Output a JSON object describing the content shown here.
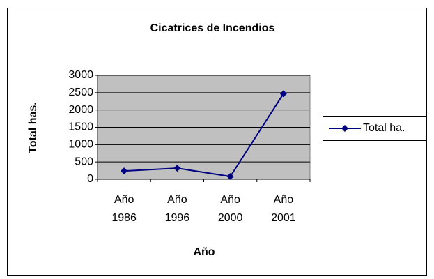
{
  "chart_data": {
    "type": "line",
    "title": "Cicatrices de Incendios",
    "x_label": "Año",
    "y_label": "Total has.",
    "categories": [
      "Año 1986",
      "Año 1996",
      "Año 2000",
      "Año 2001"
    ],
    "series": [
      {
        "name": "Total ha.",
        "color": "#000080",
        "values": [
          240,
          320,
          80,
          2470
        ]
      }
    ],
    "ylim": [
      0,
      3000
    ],
    "yticks": [
      0,
      500,
      1000,
      1500,
      2000,
      2500,
      3000
    ],
    "grid": true,
    "legend": "right"
  }
}
